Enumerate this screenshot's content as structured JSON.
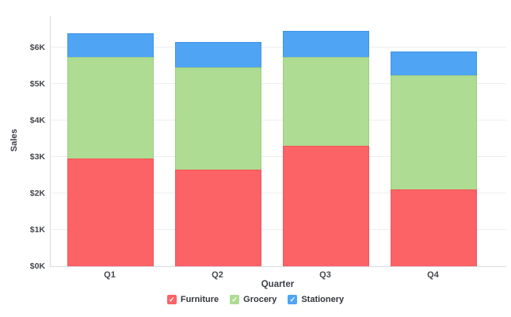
{
  "chart_data": {
    "type": "bar",
    "stacked": true,
    "title": "",
    "categories": [
      "Q1",
      "Q2",
      "Q3",
      "Q4"
    ],
    "series": [
      {
        "name": "Furniture",
        "color": "#fb6366",
        "border_color": "#f4555b",
        "values": [
          2950,
          2650,
          3300,
          2100
        ]
      },
      {
        "name": "Grocery",
        "color": "#aedc92",
        "border_color": "#9dce7e",
        "values": [
          2800,
          2800,
          2450,
          3150
        ]
      },
      {
        "name": "Stationery",
        "color": "#50a4f4",
        "border_color": "#3e93e6",
        "values": [
          650,
          700,
          700,
          650
        ]
      }
    ],
    "xlabel": "Quarter",
    "ylabel": "Sales",
    "y_ticks": [
      "$0K",
      "$1K",
      "$2K",
      "$3K",
      "$4K",
      "$5K",
      "$6K"
    ],
    "ylim": [
      0,
      6870
    ],
    "grid": "horizontal",
    "legend_position": "bottom",
    "legend_check_glyph": "✓",
    "colors": {
      "axis_line": "#d7dbe0",
      "gridline": "#edeef2",
      "tick_text": "#45484d",
      "axis_title_text": "#3c3f47"
    }
  }
}
